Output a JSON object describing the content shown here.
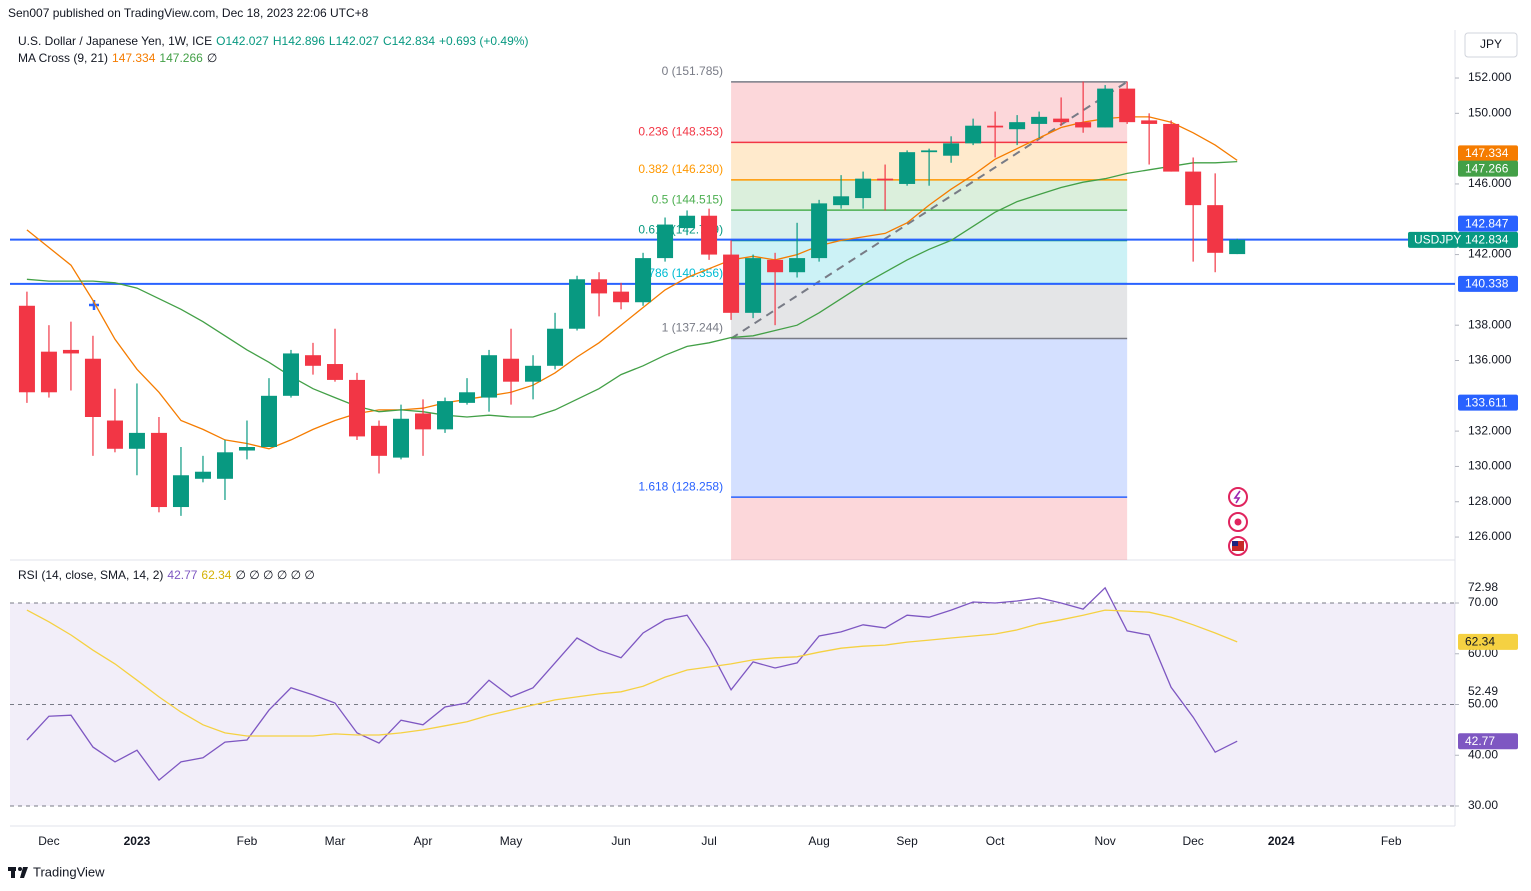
{
  "header": "Sen007 published on TradingView.com, Dec 18, 2023 22:06 UTC+8",
  "currency": "JPY",
  "footer": "TradingView",
  "chart_data": [
    {
      "type": "candlestick",
      "title": "U.S. Dollar / Japanese Yen, 1W, ICE",
      "legend_prefixes": [
        "O",
        "H",
        "L",
        "C"
      ],
      "change": "+0.693 (+0.49%)",
      "symbol": "USDJPY",
      "up_color": "#089981",
      "down_color": "#f23645",
      "open": [
        139.1,
        136.5,
        136.6,
        136.1,
        132.6,
        131.0,
        131.9,
        127.7,
        129.3,
        129.3,
        130.9,
        131.1,
        134.0,
        136.3,
        135.8,
        134.9,
        132.3,
        130.5,
        133.0,
        132.1,
        133.6,
        133.9,
        136.1,
        134.8,
        135.7,
        137.8,
        140.6,
        139.9,
        139.3,
        141.8,
        143.5,
        144.2,
        142.0,
        138.7,
        141.7,
        141.0,
        141.8,
        144.8,
        145.2,
        146.3,
        146.0,
        147.8,
        147.6,
        148.3,
        149.3,
        149.1,
        149.4,
        149.7,
        149.5,
        149.2,
        151.4,
        149.6,
        149.4,
        146.7,
        144.8,
        142.027
      ],
      "high": [
        139.9,
        138.0,
        138.2,
        137.4,
        134.4,
        134.7,
        132.8,
        131.1,
        130.6,
        131.5,
        132.6,
        135.0,
        136.6,
        137.0,
        137.8,
        135.3,
        132.6,
        133.5,
        133.8,
        133.9,
        135.0,
        136.6,
        137.8,
        136.3,
        138.7,
        140.8,
        141.0,
        140.4,
        142.1,
        144.1,
        144.5,
        144.6,
        142.8,
        142.0,
        142.1,
        143.8,
        145.1,
        146.5,
        146.7,
        147.1,
        147.9,
        148.0,
        148.7,
        149.7,
        150.1,
        149.9,
        150.1,
        150.9,
        151.8,
        151.6,
        151.8,
        150.0,
        149.6,
        147.5,
        146.6,
        142.896
      ],
      "low": [
        133.6,
        133.9,
        134.3,
        130.6,
        130.8,
        129.5,
        127.4,
        127.2,
        129.1,
        128.1,
        130.4,
        131.1,
        133.9,
        135.2,
        134.8,
        131.5,
        129.6,
        130.4,
        130.6,
        131.9,
        133.5,
        133.1,
        133.5,
        133.8,
        135.5,
        137.7,
        138.5,
        138.9,
        139.1,
        141.6,
        143.1,
        141.7,
        138.3,
        138.4,
        138.0,
        140.7,
        141.6,
        144.6,
        144.6,
        144.5,
        145.9,
        145.9,
        147.2,
        148.2,
        147.5,
        148.2,
        148.6,
        149.3,
        148.9,
        149.2,
        149.4,
        147.1,
        146.7,
        141.6,
        141.0,
        142.027
      ],
      "close": [
        134.2,
        134.2,
        136.4,
        132.8,
        131.0,
        131.9,
        127.7,
        129.5,
        129.7,
        130.8,
        131.1,
        134.0,
        136.4,
        135.7,
        134.9,
        131.7,
        130.6,
        132.7,
        132.1,
        133.7,
        134.2,
        136.3,
        134.8,
        135.7,
        137.8,
        140.6,
        139.8,
        139.3,
        141.8,
        143.7,
        144.2,
        142.0,
        138.7,
        141.8,
        141.0,
        141.8,
        144.9,
        145.3,
        146.3,
        146.2,
        147.8,
        147.9,
        148.3,
        149.3,
        149.2,
        149.5,
        149.8,
        149.5,
        149.2,
        151.4,
        149.5,
        149.4,
        146.7,
        144.8,
        142.1,
        142.834
      ],
      "indicator": "MA Cross (9, 21)",
      "indicator_suffix": "∅",
      "series": [
        {
          "color": "#f57c00",
          "values": [
            143.4,
            142.4,
            141.4,
            139.4,
            137.2,
            135.5,
            134.2,
            132.6,
            132.1,
            131.5,
            131.3,
            131.0,
            131.5,
            132.1,
            132.6,
            133.0,
            133.2,
            133.2,
            133.3,
            133.6,
            133.8,
            134.0,
            134.2,
            134.6,
            135.3,
            136.2,
            137.0,
            138.0,
            139.0,
            140.0,
            140.7,
            141.2,
            141.7,
            141.9,
            141.7,
            142.0,
            142.5,
            142.8,
            143.0,
            143.2,
            143.8,
            144.8,
            145.7,
            146.5,
            147.4,
            148.0,
            148.6,
            149.2,
            149.5,
            149.7,
            149.8,
            149.8,
            149.5,
            148.9,
            148.2,
            147.334
          ]
        },
        {
          "color": "#43a047",
          "values": [
            140.6,
            140.5,
            140.5,
            140.5,
            140.4,
            140.1,
            139.5,
            138.9,
            138.2,
            137.4,
            136.6,
            135.9,
            135.1,
            134.4,
            133.9,
            133.4,
            133.1,
            133.2,
            133.1,
            132.9,
            132.8,
            132.9,
            132.8,
            132.8,
            133.2,
            133.8,
            134.4,
            135.2,
            135.7,
            136.3,
            136.8,
            137.0,
            137.3,
            137.4,
            137.7,
            138.0,
            138.7,
            139.5,
            140.3,
            141.0,
            141.7,
            142.3,
            142.8,
            143.6,
            144.4,
            145.0,
            145.4,
            145.8,
            146.1,
            146.3,
            146.6,
            146.8,
            147.0,
            147.2,
            147.2,
            147.266
          ]
        }
      ],
      "price_lines": [
        {
          "value": 142.847,
          "color": "#2962ff"
        },
        {
          "value": 140.338,
          "color": "#2962ff"
        }
      ],
      "price_markers": [
        {
          "value": 133.611,
          "color": "#2962ff"
        }
      ],
      "fib": {
        "start_index": 32,
        "end_index": 50,
        "levels": [
          {
            "value": 151.785,
            "label": "0 (151.785)",
            "color": "#787b86",
            "fill": "rgba(242,54,69,0.2)"
          },
          {
            "value": 148.353,
            "label": "0.236 (148.353)",
            "color": "#f23645",
            "fill": "rgba(255,152,0,0.2)"
          },
          {
            "value": 146.23,
            "label": "0.382 (146.230)",
            "color": "#ff9800",
            "fill": "rgba(76,175,80,0.2)"
          },
          {
            "value": 144.515,
            "label": "0.5 (144.515)",
            "color": "#4caf50",
            "fill": "rgba(8,153,129,0.15)"
          },
          {
            "value": 142.799,
            "label": "0.618 (142.799)",
            "color": "#089981",
            "fill": "rgba(0,188,212,0.2)"
          },
          {
            "value": 140.356,
            "label": "0.786 (140.356)",
            "color": "#00bcd4",
            "fill": "rgba(120,123,134,0.2)"
          },
          {
            "value": 137.244,
            "label": "1 (137.244)",
            "color": "#787b86",
            "fill": "rgba(41,98,255,0.2)"
          },
          {
            "value": 128.258,
            "label": "1.618 (128.258)",
            "color": "#2962ff",
            "fill": "rgba(242,54,69,0.2)"
          }
        ]
      },
      "xlim": [
        -0.77,
        64.9
      ],
      "xticks": [
        {
          "value": 1,
          "label": "Dec"
        },
        {
          "value": 5,
          "label": "2023"
        },
        {
          "value": 10,
          "label": "Feb"
        },
        {
          "value": 14,
          "label": "Mar"
        },
        {
          "value": 18,
          "label": "Apr"
        },
        {
          "value": 22,
          "label": "May"
        },
        {
          "value": 27,
          "label": "Jun"
        },
        {
          "value": 31,
          "label": "Jul"
        },
        {
          "value": 36,
          "label": "Aug"
        },
        {
          "value": 40,
          "label": "Sep"
        },
        {
          "value": 44,
          "label": "Oct"
        },
        {
          "value": 49,
          "label": "Nov"
        },
        {
          "value": 53,
          "label": "Dec"
        },
        {
          "value": 57,
          "label": "2024"
        },
        {
          "value": 62,
          "label": "Feb"
        }
      ],
      "ylim": [
        124.7,
        154.72
      ],
      "yticks": [
        {
          "value": 152,
          "label": "152.000"
        },
        {
          "value": 150,
          "label": "150.000"
        },
        {
          "value": 146,
          "label": "146.000"
        },
        {
          "value": 142,
          "label": "142.000"
        },
        {
          "value": 138,
          "label": "138.000"
        },
        {
          "value": 136,
          "label": "136.000"
        },
        {
          "value": 132,
          "label": "132.000"
        },
        {
          "value": 130,
          "label": "130.000"
        },
        {
          "value": 128,
          "label": "128.000"
        },
        {
          "value": 126,
          "label": "126.000"
        }
      ],
      "grid": false
    },
    {
      "type": "line",
      "title": "RSI (14, close, SMA, 14, 2)",
      "legend_suffix": "∅ ∅ ∅ ∅ ∅ ∅",
      "series": [
        {
          "color": "#7e57c2",
          "values": [
            43.0,
            47.7,
            47.9,
            41.6,
            38.7,
            41.0,
            35.1,
            38.7,
            39.5,
            42.6,
            43.0,
            48.9,
            53.3,
            51.9,
            50.3,
            44.4,
            42.4,
            46.9,
            46.0,
            49.5,
            50.3,
            54.8,
            51.5,
            53.3,
            58.2,
            63.1,
            60.7,
            59.2,
            64.1,
            66.7,
            67.6,
            61.1,
            52.9,
            58.4,
            57.2,
            58.2,
            63.5,
            64.3,
            65.7,
            65.1,
            67.6,
            67.2,
            68.6,
            70.2,
            70.0,
            70.4,
            71.0,
            70.0,
            68.8,
            73.0,
            64.5,
            63.7,
            53.4,
            47.5,
            40.6,
            42.77
          ]
        },
        {
          "color": "#f5d142",
          "values": [
            68.6,
            66.3,
            63.7,
            60.7,
            58.0,
            54.8,
            51.5,
            48.5,
            46.0,
            44.4,
            43.8,
            43.8,
            43.8,
            43.8,
            44.2,
            44.0,
            44.0,
            44.4,
            45.0,
            45.8,
            46.6,
            47.9,
            48.9,
            49.9,
            50.9,
            51.5,
            52.1,
            52.5,
            53.6,
            55.4,
            56.8,
            57.4,
            58.0,
            58.8,
            59.2,
            59.4,
            60.3,
            61.1,
            61.5,
            61.7,
            62.3,
            62.7,
            63.1,
            63.5,
            63.9,
            64.7,
            65.9,
            66.7,
            67.6,
            68.6,
            68.4,
            68.2,
            67.2,
            65.7,
            64.1,
            62.34
          ]
        }
      ],
      "hlines": [
        70,
        50,
        30
      ],
      "axis_marks": [
        72.98,
        52.49
      ],
      "ylim": [
        26.06,
        78.28
      ],
      "yticks": [
        {
          "value": 70,
          "label": "70.00"
        },
        {
          "value": 60,
          "label": "60.00"
        },
        {
          "value": 50,
          "label": "50.00"
        },
        {
          "value": 40,
          "label": "40.00"
        },
        {
          "value": 30,
          "label": "30.00"
        }
      ]
    }
  ]
}
